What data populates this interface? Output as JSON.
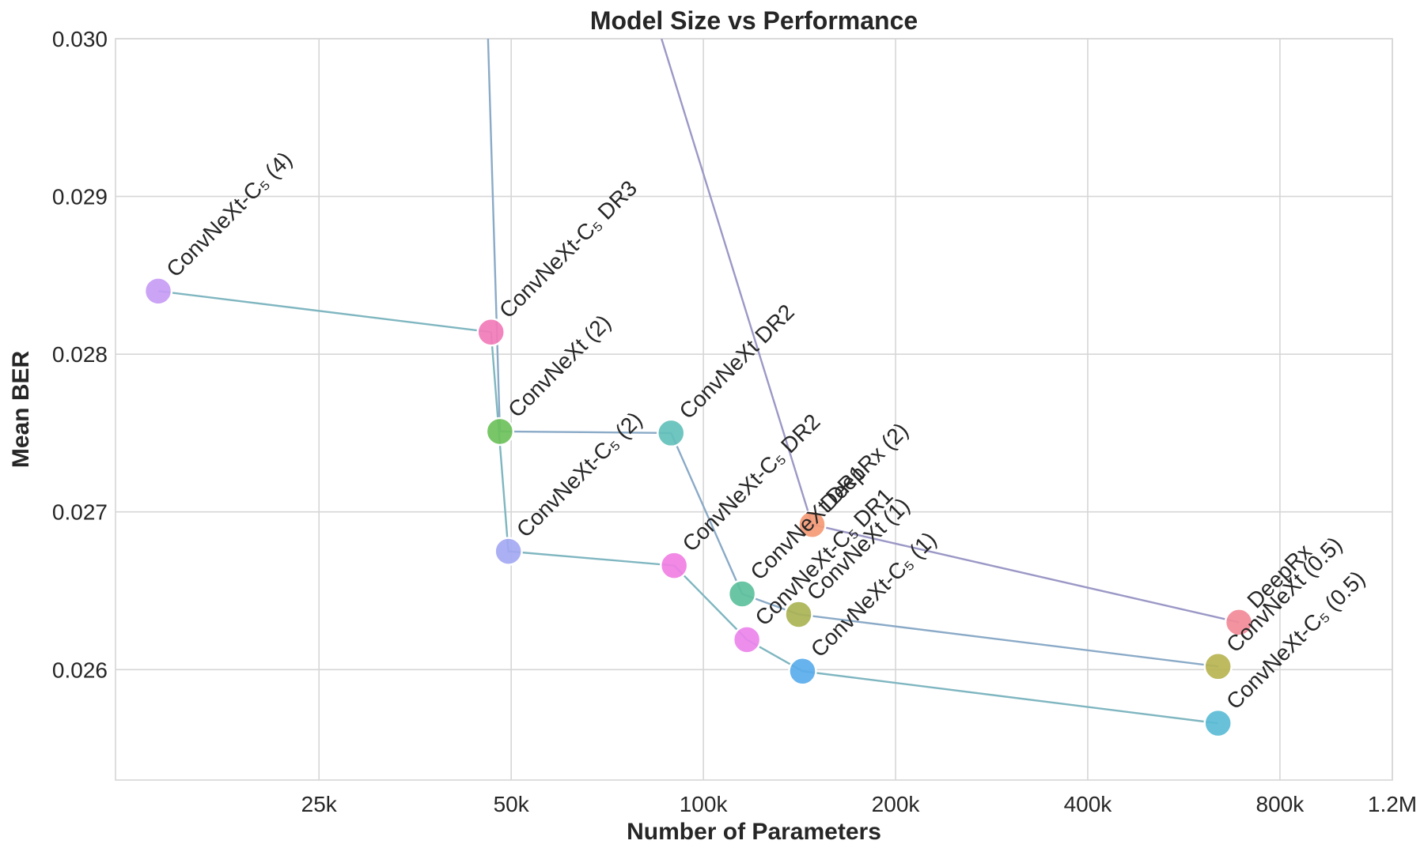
{
  "chart_data": {
    "type": "scatter",
    "title": "Model Size vs Performance",
    "xlabel": "Number of Parameters",
    "ylabel": "Mean BER",
    "xscale": "log",
    "xlim": [
      12000,
      1200000
    ],
    "ylim": [
      0.0253,
      0.03
    ],
    "xticks": [
      {
        "value": 25000,
        "label": "25k"
      },
      {
        "value": 50000,
        "label": "50k"
      },
      {
        "value": 100000,
        "label": "100k"
      },
      {
        "value": 200000,
        "label": "200k"
      },
      {
        "value": 400000,
        "label": "400k"
      },
      {
        "value": 800000,
        "label": "800k"
      },
      {
        "value": 1200000,
        "label": "1.2M"
      }
    ],
    "yticks": [
      {
        "value": 0.026,
        "label": "0.026"
      },
      {
        "value": 0.027,
        "label": "0.027"
      },
      {
        "value": 0.028,
        "label": "0.028"
      },
      {
        "value": 0.029,
        "label": "0.029"
      },
      {
        "value": 0.03,
        "label": "0.030"
      }
    ],
    "grid": true,
    "points": [
      {
        "label": "ConvNeXt-C₅ (4)",
        "x": 14000,
        "y": 0.0284,
        "color": "#c79cf5"
      },
      {
        "label": "ConvNeXt-C₅ DR3",
        "x": 46500,
        "y": 0.02814,
        "color": "#f27bb8"
      },
      {
        "label": "ConvNeXt (2)",
        "x": 48000,
        "y": 0.02751,
        "color": "#6cc15a"
      },
      {
        "label": "ConvNeXt-C₅ (2)",
        "x": 49500,
        "y": 0.02675,
        "color": "#a4a8f2"
      },
      {
        "label": "ConvNeXt DR2",
        "x": 89000,
        "y": 0.0275,
        "color": "#63c0ba"
      },
      {
        "label": "ConvNeXt-C₅ DR2",
        "x": 90000,
        "y": 0.02666,
        "color": "#f07fe3"
      },
      {
        "label": "ConvNeXt DR1",
        "x": 115000,
        "y": 0.02648,
        "color": "#5dc09c"
      },
      {
        "label": "ConvNeXt-C₅ DR1",
        "x": 117000,
        "y": 0.02619,
        "color": "#eb84ec"
      },
      {
        "label": "ConvNeXt (1)",
        "x": 141000,
        "y": 0.02635,
        "color": "#aab354"
      },
      {
        "label": "ConvNeXt-C₅ (1)",
        "x": 143000,
        "y": 0.02599,
        "color": "#5aaceb"
      },
      {
        "label": "DeepRx (2)",
        "x": 148000,
        "y": 0.02692,
        "color": "#f59a75"
      },
      {
        "label": "DeepRx",
        "x": 690000,
        "y": 0.0263,
        "color": "#f28a98"
      },
      {
        "label": "ConvNeXt (0.5)",
        "x": 640000,
        "y": 0.02602,
        "color": "#b7b451"
      },
      {
        "label": "ConvNeXt-C₅ (0.5)",
        "x": 640000,
        "y": 0.02566,
        "color": "#5bbcd6"
      }
    ],
    "series": [
      {
        "name": "ConvNeXt-C₅",
        "color": "#7fb6c0",
        "points": [
          [
            14000,
            0.0284
          ],
          [
            46500,
            0.02814
          ],
          [
            49500,
            0.02675
          ],
          [
            90000,
            0.02666
          ],
          [
            117000,
            0.02619
          ],
          [
            143000,
            0.02599
          ],
          [
            640000,
            0.02566
          ]
        ]
      },
      {
        "name": "ConvNeXt",
        "color": "#8aaac7",
        "points": [
          [
            46000,
            0.03
          ],
          [
            48000,
            0.02751
          ],
          [
            89000,
            0.0275
          ],
          [
            115000,
            0.02648
          ],
          [
            141000,
            0.02635
          ],
          [
            640000,
            0.02602
          ]
        ]
      },
      {
        "name": "DeepRx",
        "color": "#9b98c6",
        "points": [
          [
            86000,
            0.03
          ],
          [
            148000,
            0.02692
          ],
          [
            690000,
            0.0263
          ]
        ]
      }
    ]
  }
}
